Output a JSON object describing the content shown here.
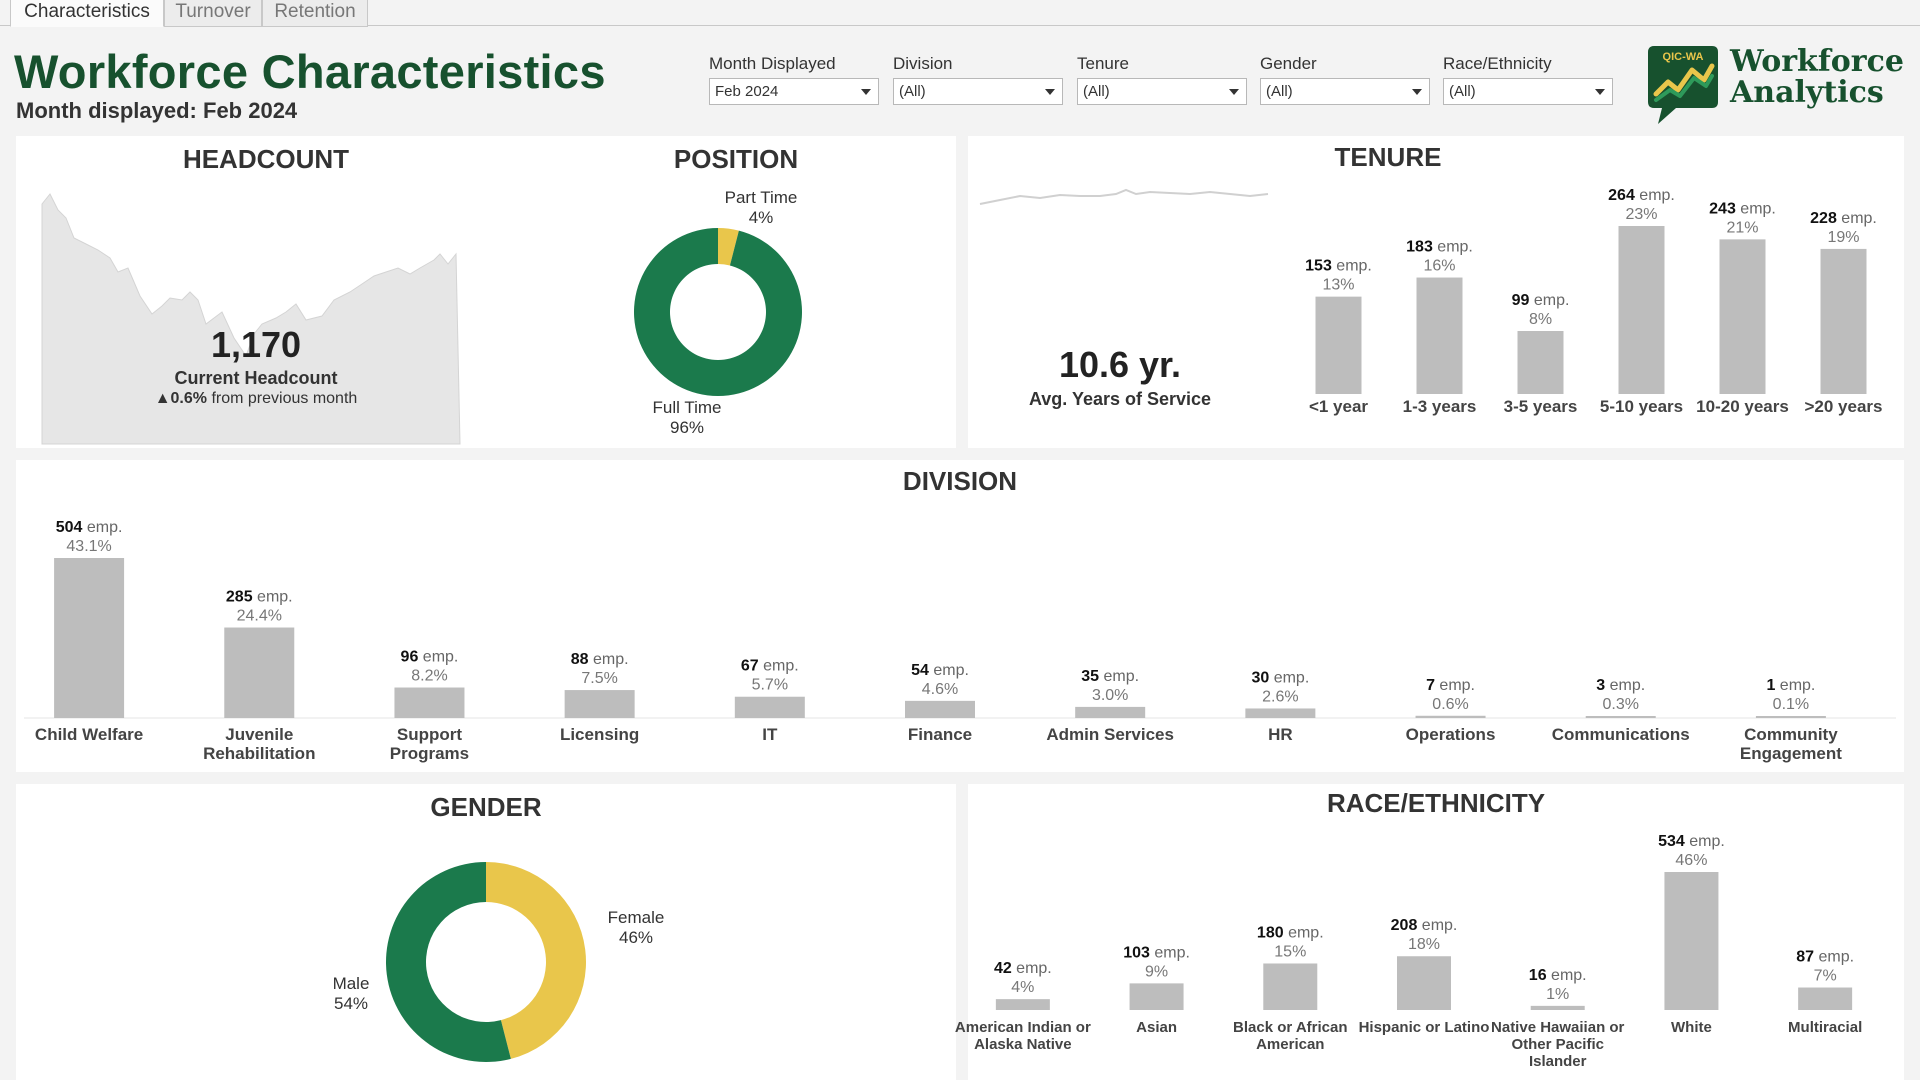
{
  "tabs": [
    {
      "label": "Characteristics",
      "active": true
    },
    {
      "label": "Turnover",
      "active": false
    },
    {
      "label": "Retention",
      "active": false
    }
  ],
  "header": {
    "title": "Workforce Characteristics",
    "subtitle": "Month displayed: Feb 2024",
    "title_color": "#17512e"
  },
  "filters": [
    {
      "label": "Month Displayed",
      "value": "Feb 2024"
    },
    {
      "label": "Division",
      "value": "(All)"
    },
    {
      "label": "Tenure",
      "value": "(All)"
    },
    {
      "label": "Gender",
      "value": "(All)"
    },
    {
      "label": "Race/Ethnicity",
      "value": "(All)"
    }
  ],
  "brand": {
    "badge": "QIC-WA",
    "line1": "Workforce",
    "line2": "Analytics",
    "colors": {
      "dark_green": "#17512e",
      "green": "#1e7a4a",
      "yellow": "#e9c64b"
    }
  },
  "colors": {
    "bar": "#bdbdbd",
    "full_time": "#1b7a4c",
    "part_time": "#e9c64b",
    "male": "#1b7a4c",
    "female": "#e9c64b",
    "area": "#e6e6e6"
  },
  "headcount": {
    "title": "HEADCOUNT",
    "value": "1,170",
    "label": "Current Headcount",
    "change_arrow": "▲",
    "change_value": "0.6%",
    "change_text": "from previous month"
  },
  "position": {
    "title": "POSITION",
    "part_time_label": "Part Time",
    "part_time_pct": "4%",
    "part_time_value": 4,
    "full_time_label": "Full Time",
    "full_time_pct": "96%",
    "full_time_value": 96
  },
  "tenure": {
    "title": "TENURE",
    "avg_value": "10.6 yr.",
    "avg_label": "Avg. Years of Service"
  },
  "division": {
    "title": "DIVISION"
  },
  "gender": {
    "title": "GENDER",
    "female_label": "Female",
    "female_pct": "46%",
    "female_value": 46,
    "male_label": "Male",
    "male_pct": "54%",
    "male_value": 54
  },
  "race": {
    "title": "RACE/ETHNICITY"
  },
  "chart_data": [
    {
      "type": "bar",
      "title": "TENURE",
      "categories": [
        "<1 year",
        "1-3 years",
        "3-5 years",
        "5-10 years",
        "10-20 years",
        ">20 years"
      ],
      "values": [
        153,
        183,
        99,
        264,
        243,
        228
      ],
      "percent_labels": [
        "13%",
        "16%",
        "8%",
        "23%",
        "21%",
        "19%"
      ],
      "unit": "emp."
    },
    {
      "type": "bar",
      "title": "DIVISION",
      "categories": [
        "Child Welfare",
        "Juvenile Rehabilitation",
        "Support Programs",
        "Licensing",
        "IT",
        "Finance",
        "Admin Services",
        "HR",
        "Operations",
        "Communications",
        "Community Engagement"
      ],
      "values": [
        504,
        285,
        96,
        88,
        67,
        54,
        35,
        30,
        7,
        3,
        1
      ],
      "percent_labels": [
        "43.1%",
        "24.4%",
        "8.2%",
        "7.5%",
        "5.7%",
        "4.6%",
        "3.0%",
        "2.6%",
        "0.6%",
        "0.3%",
        "0.1%"
      ],
      "unit": "emp."
    },
    {
      "type": "bar",
      "title": "RACE/ETHNICITY",
      "categories": [
        "American Indian or Alaska Native",
        "Asian",
        "Black or African American",
        "Hispanic or Latino",
        "Native Hawaiian or Other Pacific Islander",
        "White",
        "Multiracial"
      ],
      "values": [
        42,
        103,
        180,
        208,
        16,
        534,
        87
      ],
      "percent_labels": [
        "4%",
        "9%",
        "15%",
        "18%",
        "1%",
        "46%",
        "7%"
      ],
      "unit": "emp."
    },
    {
      "type": "pie",
      "title": "POSITION",
      "categories": [
        "Part Time",
        "Full Time"
      ],
      "values": [
        4,
        96
      ]
    },
    {
      "type": "pie",
      "title": "GENDER",
      "categories": [
        "Female",
        "Male"
      ],
      "values": [
        46,
        54
      ]
    }
  ]
}
